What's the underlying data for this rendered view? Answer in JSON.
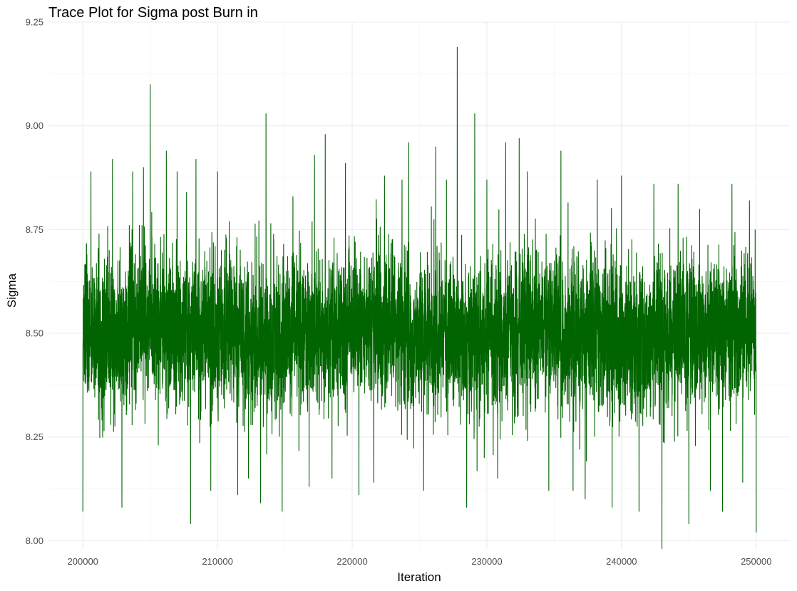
{
  "chart_data": {
    "type": "line",
    "title": "Trace Plot for Sigma post Burn in",
    "xlabel": "Iteration",
    "ylabel": "Sigma",
    "xlim": [
      197500,
      252500
    ],
    "ylim": [
      7.98,
      9.25
    ],
    "x_ticks": [
      200000,
      210000,
      220000,
      230000,
      240000,
      250000
    ],
    "x_tick_labels": [
      "200000",
      "210000",
      "220000",
      "230000",
      "240000",
      "250000"
    ],
    "y_ticks": [
      8.0,
      8.25,
      8.5,
      8.75,
      9.0,
      9.25
    ],
    "y_tick_labels": [
      "8.00",
      "8.25",
      "8.50",
      "8.75",
      "9.00",
      "9.25"
    ],
    "grid": true,
    "legend": "none",
    "series": [
      {
        "color": "#006400",
        "x_range": [
          200000,
          250000
        ],
        "center": 8.5,
        "band_low": 8.3,
        "band_high": 8.7,
        "values_sampled": [
          [
            200000,
            8.07
          ],
          [
            200300,
            8.69
          ],
          [
            200600,
            8.89
          ],
          [
            201200,
            8.74
          ],
          [
            202200,
            8.92
          ],
          [
            202900,
            8.08
          ],
          [
            203700,
            8.89
          ],
          [
            204500,
            8.9
          ],
          [
            205000,
            9.1
          ],
          [
            205600,
            8.23
          ],
          [
            206200,
            8.94
          ],
          [
            207000,
            8.89
          ],
          [
            207700,
            8.84
          ],
          [
            208000,
            8.04
          ],
          [
            208400,
            8.92
          ],
          [
            209500,
            8.12
          ],
          [
            210000,
            8.89
          ],
          [
            211500,
            8.11
          ],
          [
            212300,
            8.15
          ],
          [
            213200,
            8.09
          ],
          [
            213600,
            9.03
          ],
          [
            214800,
            8.07
          ],
          [
            215600,
            8.83
          ],
          [
            216800,
            8.13
          ],
          [
            217200,
            8.93
          ],
          [
            218000,
            8.98
          ],
          [
            218500,
            8.15
          ],
          [
            219500,
            8.91
          ],
          [
            220500,
            8.11
          ],
          [
            221600,
            8.14
          ],
          [
            222400,
            8.88
          ],
          [
            223700,
            8.87
          ],
          [
            224200,
            8.96
          ],
          [
            225300,
            8.12
          ],
          [
            226200,
            8.95
          ],
          [
            227000,
            8.87
          ],
          [
            227800,
            9.19
          ],
          [
            228500,
            8.08
          ],
          [
            229100,
            9.03
          ],
          [
            230000,
            8.87
          ],
          [
            230800,
            8.15
          ],
          [
            231400,
            8.96
          ],
          [
            232400,
            8.97
          ],
          [
            233000,
            8.89
          ],
          [
            234600,
            8.12
          ],
          [
            235500,
            8.94
          ],
          [
            236400,
            8.12
          ],
          [
            237300,
            8.1
          ],
          [
            238200,
            8.87
          ],
          [
            239300,
            8.08
          ],
          [
            240000,
            8.88
          ],
          [
            241300,
            8.07
          ],
          [
            242400,
            8.86
          ],
          [
            243000,
            7.98
          ],
          [
            244200,
            8.86
          ],
          [
            245000,
            8.04
          ],
          [
            245800,
            8.8
          ],
          [
            246600,
            8.12
          ],
          [
            247500,
            8.07
          ],
          [
            248200,
            8.86
          ],
          [
            249000,
            8.14
          ],
          [
            249500,
            8.82
          ],
          [
            250000,
            8.02
          ]
        ]
      }
    ]
  }
}
